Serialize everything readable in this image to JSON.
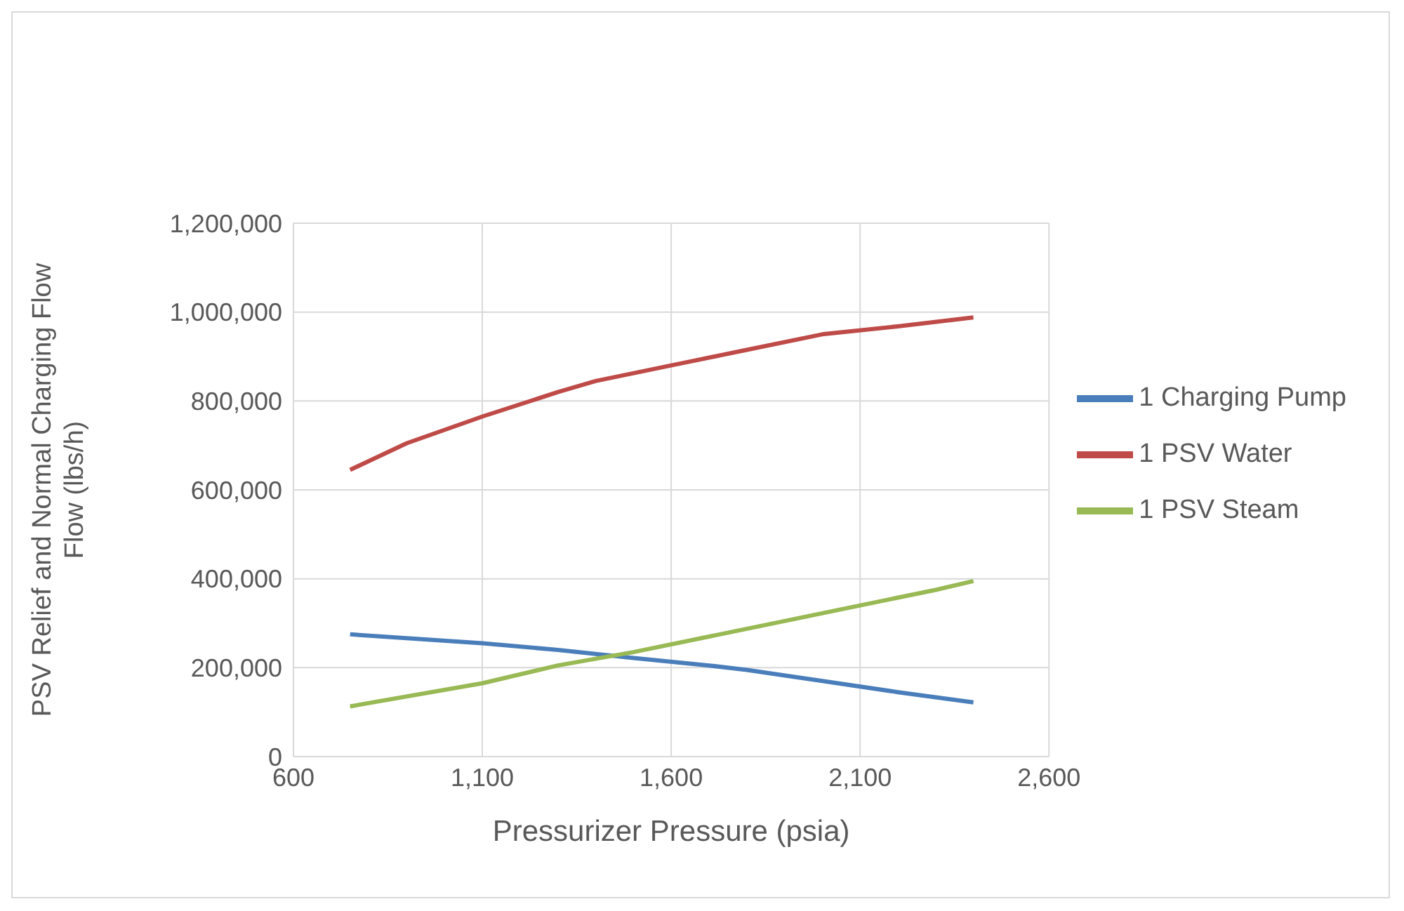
{
  "chart_data": {
    "type": "line",
    "xlabel": "Pressurizer Pressure (psia)",
    "ylabel": "PSV Relief and Normal Charging Flow Flow (lbs/h)",
    "xlim": [
      600,
      2600
    ],
    "xticks": [
      600,
      {
        "value": 1100,
        "label": "1,100"
      },
      {
        "value": 1600,
        "label": "1,600"
      },
      {
        "value": 2100,
        "label": "2,100"
      },
      {
        "value": 2600,
        "label": "2,600"
      }
    ],
    "ylim": [
      0,
      1200000
    ],
    "yticks": [
      0,
      {
        "value": 200000,
        "label": "200,000"
      },
      {
        "value": 400000,
        "label": "400,000"
      },
      {
        "value": 600000,
        "label": "600,000"
      },
      {
        "value": 800000,
        "label": "800,000"
      },
      {
        "value": 1000000,
        "label": "1,000,000"
      },
      {
        "value": 1200000,
        "label": "1,200,000"
      }
    ],
    "grid": true,
    "legend": "right",
    "marker": "none",
    "line_style": "solid",
    "series": [
      {
        "name": "1 Charging Pump",
        "color": "#4a7ebb",
        "x": [
          750,
          1100,
          1300,
          1500,
          1700,
          1800,
          2000,
          2200,
          2400
        ],
        "values": [
          275000,
          255000,
          240000,
          222000,
          205000,
          195000,
          170000,
          145000,
          122000
        ]
      },
      {
        "name": "1 PSV Water",
        "color": "#be4b48",
        "x": [
          750,
          900,
          1100,
          1300,
          1400,
          1600,
          1800,
          2000,
          2200,
          2400
        ],
        "values": [
          645000,
          705000,
          765000,
          820000,
          845000,
          880000,
          915000,
          950000,
          968000,
          988000
        ]
      },
      {
        "name": "1 PSV Steam",
        "color": "#98b954",
        "x": [
          750,
          1100,
          1300,
          1500,
          1700,
          1900,
          2100,
          2300,
          2400
        ],
        "values": [
          113000,
          165000,
          205000,
          235000,
          270000,
          305000,
          340000,
          375000,
          395000
        ]
      }
    ]
  }
}
